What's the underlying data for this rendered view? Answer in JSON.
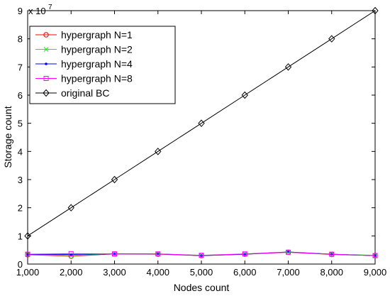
{
  "chart_data": {
    "type": "line",
    "title": "",
    "xlabel": "Nodes count",
    "ylabel": "Storage count",
    "y_multiplier_label": "x 10",
    "y_multiplier_exponent": "7",
    "xlim": [
      1000,
      9000
    ],
    "ylim": [
      0,
      9
    ],
    "y_scale_factor": 10000000,
    "grid": false,
    "legend_position": "top-left",
    "x": [
      1000,
      2000,
      3000,
      4000,
      5000,
      6000,
      7000,
      8000,
      9000
    ],
    "x_tick_labels": [
      "1,000",
      "2,000",
      "3,000",
      "4,000",
      "5,000",
      "6,000",
      "7,000",
      "8,000",
      "9,000"
    ],
    "y_ticks": [
      0,
      1,
      2,
      3,
      4,
      5,
      6,
      7,
      8,
      9
    ],
    "y_tick_labels": [
      "0",
      "1",
      "2",
      "3",
      "4",
      "5",
      "6",
      "7",
      "8",
      "9"
    ],
    "series": [
      {
        "name": "hypergraph N=1",
        "color": "#ff0000",
        "marker": "circle",
        "values": [
          0.33,
          0.28,
          0.36,
          0.35,
          0.3,
          0.35,
          0.42,
          0.34,
          0.3
        ]
      },
      {
        "name": "hypergraph N=2",
        "color": "#00ff00",
        "marker": "x",
        "values": [
          0.34,
          0.3,
          0.37,
          0.36,
          0.31,
          0.36,
          0.43,
          0.35,
          0.31
        ]
      },
      {
        "name": "hypergraph N=4",
        "color": "#0000ff",
        "marker": "dot",
        "values": [
          0.34,
          0.34,
          0.36,
          0.36,
          0.3,
          0.35,
          0.43,
          0.35,
          0.3
        ]
      },
      {
        "name": "hypergraph N=8",
        "color": "#ff00ff",
        "marker": "square",
        "values": [
          0.35,
          0.37,
          0.36,
          0.36,
          0.31,
          0.36,
          0.42,
          0.35,
          0.3
        ]
      },
      {
        "name": "original BC",
        "color": "#000000",
        "marker": "diamond",
        "values": [
          1,
          2,
          3,
          4,
          5,
          6,
          7,
          8,
          9
        ]
      }
    ]
  }
}
